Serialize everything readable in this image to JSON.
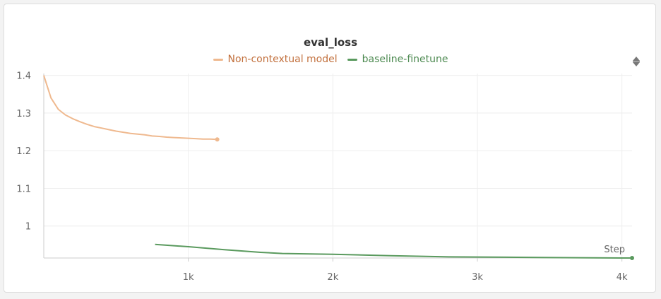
{
  "chart_data": {
    "type": "line",
    "title": "eval_loss",
    "xlabel": "Step",
    "ylabel": "",
    "xlim": [
      0,
      4070
    ],
    "ylim": [
      0.915,
      1.405
    ],
    "x_ticks": [
      {
        "value": 1000,
        "label": "1k"
      },
      {
        "value": 2000,
        "label": "2k"
      },
      {
        "value": 3000,
        "label": "3k"
      },
      {
        "value": 4000,
        "label": "4k"
      }
    ],
    "y_ticks": [
      {
        "value": 1.4,
        "label": "1.4"
      },
      {
        "value": 1.3,
        "label": "1.3"
      },
      {
        "value": 1.2,
        "label": "1.2"
      },
      {
        "value": 1.1,
        "label": "1.1"
      },
      {
        "value": 1.0,
        "label": "1"
      }
    ],
    "grid": true,
    "legend_position": "top-center",
    "series": [
      {
        "name": "Non-contextual model",
        "color": "#efb98f",
        "x": [
          0,
          50,
          100,
          150,
          200,
          250,
          300,
          350,
          400,
          450,
          500,
          550,
          600,
          650,
          700,
          750,
          800,
          850,
          900,
          950,
          1000,
          1050,
          1100,
          1150,
          1200
        ],
        "y": [
          1.4,
          1.34,
          1.31,
          1.295,
          1.285,
          1.277,
          1.27,
          1.264,
          1.26,
          1.256,
          1.252,
          1.249,
          1.246,
          1.244,
          1.242,
          1.239,
          1.238,
          1.236,
          1.235,
          1.234,
          1.233,
          1.232,
          1.231,
          1.231,
          1.23
        ]
      },
      {
        "name": "baseline-finetune",
        "color": "#5a9a5e",
        "x": [
          770,
          1000,
          1250,
          1500,
          1650,
          2000,
          2400,
          2800,
          3200,
          3600,
          4000,
          4070
        ],
        "y": [
          0.951,
          0.945,
          0.937,
          0.93,
          0.927,
          0.925,
          0.921,
          0.918,
          0.917,
          0.916,
          0.915,
          0.915
        ]
      }
    ]
  },
  "ui": {
    "menu_icon": "drag-handle-icon"
  }
}
